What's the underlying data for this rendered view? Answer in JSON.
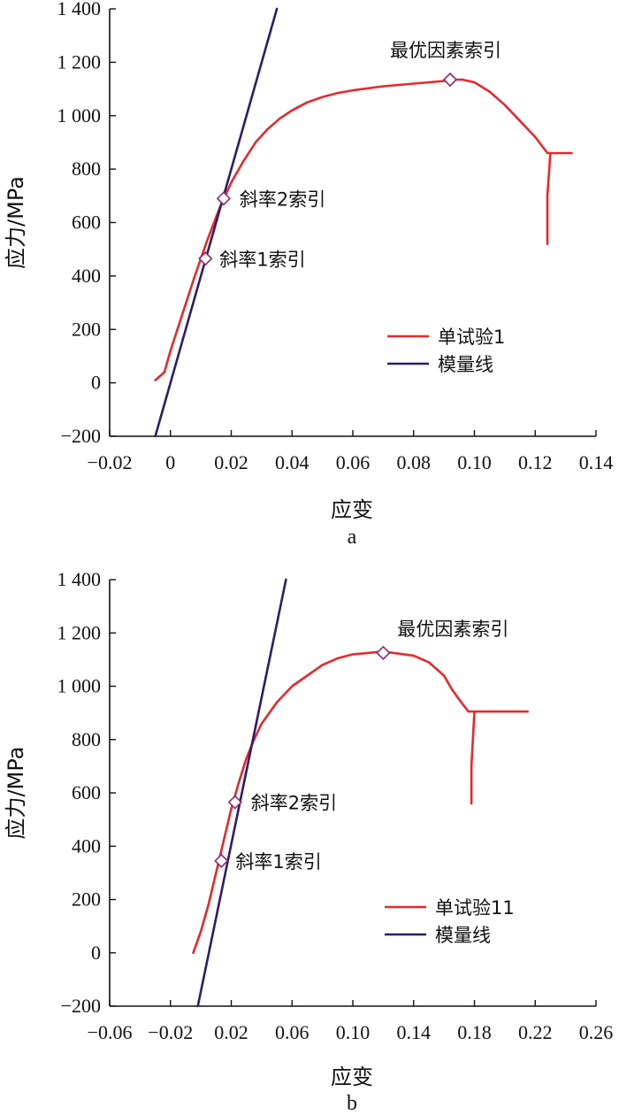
{
  "chart_data": [
    {
      "type": "line",
      "panel_label": "a",
      "xlabel": "应变",
      "ylabel": "应力/MPa",
      "xlim": [
        -0.02,
        0.14
      ],
      "ylim": [
        -200,
        1400
      ],
      "xticks": [
        -0.02,
        0,
        0.02,
        0.04,
        0.06,
        0.08,
        0.1,
        0.12,
        0.14
      ],
      "xtick_labels": [
        "−0.02",
        "0",
        "0.02",
        "0.04",
        "0.06",
        "0.08",
        "0.10",
        "0.12",
        "0.14"
      ],
      "yticks": [
        -200,
        0,
        200,
        400,
        600,
        800,
        1000,
        1200,
        1400
      ],
      "ytick_labels": [
        "−200",
        "0",
        "200",
        "400",
        "600",
        "800",
        "1 000",
        "1 200",
        "1 400"
      ],
      "legend_position": "bottom-right",
      "series": [
        {
          "name": "单试验1",
          "color": "#e8282b",
          "x": [
            -0.005,
            -0.002,
            0.0,
            0.004,
            0.008,
            0.012,
            0.016,
            0.02,
            0.024,
            0.028,
            0.032,
            0.036,
            0.04,
            0.045,
            0.05,
            0.055,
            0.06,
            0.07,
            0.08,
            0.09,
            0.092,
            0.096,
            0.1,
            0.105,
            0.11,
            0.115,
            0.12,
            0.124,
            0.124,
            0.128,
            0.132,
            0.125,
            0.124,
            0.124
          ],
          "y": [
            10,
            40,
            120,
            260,
            400,
            530,
            650,
            750,
            830,
            900,
            950,
            990,
            1020,
            1050,
            1070,
            1085,
            1095,
            1110,
            1120,
            1130,
            1135,
            1135,
            1125,
            1090,
            1040,
            980,
            920,
            860,
            860,
            860,
            860,
            860,
            700,
            520
          ]
        },
        {
          "name": "模量线",
          "color": "#2e1a6e",
          "x": [
            -0.005,
            0.035
          ],
          "y": [
            -200,
            1400
          ]
        }
      ],
      "annotations": [
        {
          "text": "斜率1索引",
          "x": 0.0115,
          "y": 465
        },
        {
          "text": "斜率2索引",
          "x": 0.0175,
          "y": 690
        },
        {
          "text": "最优因素索引",
          "x": 0.092,
          "y": 1135
        }
      ]
    },
    {
      "type": "line",
      "panel_label": "b",
      "xlabel": "应变",
      "ylabel": "应力/MPa",
      "xlim": [
        -0.06,
        0.26
      ],
      "ylim": [
        -200,
        1400
      ],
      "xticks": [
        -0.06,
        -0.02,
        0.02,
        0.06,
        0.1,
        0.14,
        0.18,
        0.22,
        0.26
      ],
      "xtick_labels": [
        "−0.06",
        "−0.02",
        "0.02",
        "0.06",
        "0.10",
        "0.14",
        "0.18",
        "0.22",
        "0.26"
      ],
      "yticks": [
        -200,
        0,
        200,
        400,
        600,
        800,
        1000,
        1200,
        1400
      ],
      "ytick_labels": [
        "−200",
        "0",
        "200",
        "400",
        "600",
        "800",
        "1 000",
        "1 200",
        "1 400"
      ],
      "legend_position": "bottom-right",
      "series": [
        {
          "name": "单试验11",
          "color": "#e8282b",
          "x": [
            -0.005,
            0.0,
            0.005,
            0.01,
            0.015,
            0.02,
            0.025,
            0.03,
            0.035,
            0.04,
            0.05,
            0.06,
            0.07,
            0.08,
            0.09,
            0.1,
            0.12,
            0.14,
            0.15,
            0.16,
            0.165,
            0.17,
            0.176,
            0.21,
            0.215,
            0.18,
            0.178,
            0.178
          ],
          "y": [
            0,
            80,
            180,
            300,
            420,
            540,
            640,
            730,
            800,
            860,
            940,
            1000,
            1040,
            1080,
            1105,
            1120,
            1130,
            1115,
            1090,
            1040,
            990,
            950,
            905,
            905,
            905,
            905,
            700,
            560
          ]
        },
        {
          "name": "模量线",
          "color": "#2e1a6e",
          "x": [
            -0.002,
            0.056
          ],
          "y": [
            -200,
            1400
          ]
        }
      ],
      "annotations": [
        {
          "text": "斜率1索引",
          "x": 0.0135,
          "y": 345
        },
        {
          "text": "斜率2索引",
          "x": 0.0225,
          "y": 565
        },
        {
          "text": "最优因素索引",
          "x": 0.12,
          "y": 1125
        }
      ]
    }
  ]
}
